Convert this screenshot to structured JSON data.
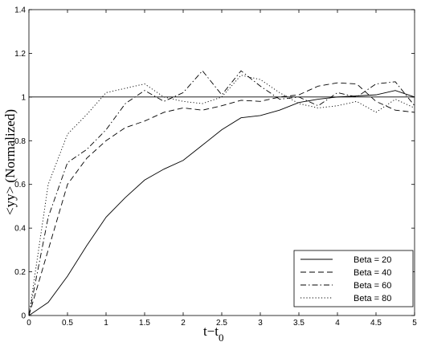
{
  "chart_data": {
    "type": "line",
    "ylabel": "<yy> (Normalized)",
    "xlabel": "t−t",
    "xlabel_sub": "0",
    "x": [
      0,
      0.25,
      0.5,
      0.75,
      1,
      1.25,
      1.5,
      1.75,
      2,
      2.25,
      2.5,
      2.75,
      3,
      3.25,
      3.5,
      3.75,
      4,
      4.25,
      4.5,
      4.75,
      5
    ],
    "series": [
      {
        "name": "Beta = 20",
        "color": "#000000",
        "dash": "none",
        "values": [
          0,
          0.06,
          0.18,
          0.32,
          0.45,
          0.54,
          0.62,
          0.67,
          0.71,
          0.78,
          0.85,
          0.905,
          0.915,
          0.94,
          0.975,
          0.99,
          1.0,
          1.005,
          1.01,
          1.03,
          1.0
        ]
      },
      {
        "name": "Beta = 40",
        "color": "#000000",
        "dash": "7 4",
        "values": [
          0,
          0.3,
          0.6,
          0.72,
          0.8,
          0.86,
          0.89,
          0.93,
          0.95,
          0.94,
          0.96,
          0.985,
          0.98,
          1.0,
          1.01,
          1.05,
          1.065,
          1.06,
          0.98,
          0.94,
          0.93
        ]
      },
      {
        "name": "Beta = 60",
        "color": "#000000",
        "dash": "7 3 1.5 3",
        "values": [
          0,
          0.45,
          0.7,
          0.76,
          0.85,
          0.97,
          1.03,
          0.98,
          1.02,
          1.12,
          1.01,
          1.12,
          1.05,
          0.99,
          1.0,
          0.96,
          1.02,
          1.0,
          1.06,
          1.07,
          0.96
        ]
      },
      {
        "name": "Beta = 80",
        "color": "#000000",
        "dash": "1.2 2.5",
        "values": [
          0,
          0.6,
          0.83,
          0.92,
          1.02,
          1.04,
          1.06,
          1.0,
          0.98,
          0.97,
          1.0,
          1.1,
          1.08,
          1.02,
          0.97,
          0.95,
          0.96,
          0.98,
          0.93,
          0.99,
          0.95
        ]
      }
    ],
    "reference_line": 1,
    "xlim": [
      0,
      5
    ],
    "xticks": [
      0,
      0.5,
      1,
      1.5,
      2,
      2.5,
      3,
      3.5,
      4,
      4.5,
      5
    ],
    "ylim": [
      0,
      1.4
    ],
    "yticks": [
      0,
      0.2,
      0.4,
      0.6,
      0.8,
      1,
      1.2,
      1.4
    ],
    "legend": "lower right",
    "grid": false
  }
}
